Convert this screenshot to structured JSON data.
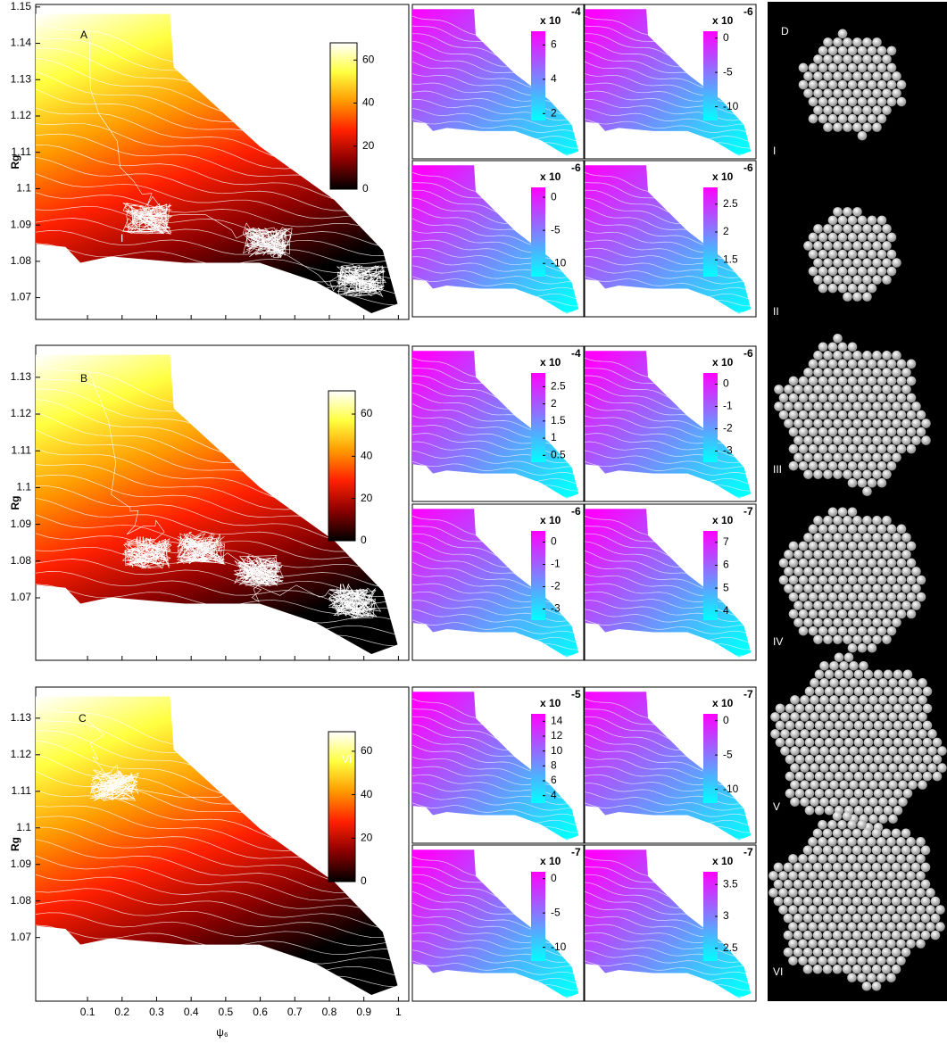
{
  "chart_data": [
    {
      "type": "contour",
      "panel_label": "A",
      "ylabel": "Rg",
      "xlim": [
        -0.05,
        1.03
      ],
      "ylim": [
        1.064,
        1.1507
      ],
      "xticks": [
        0.1,
        0.2,
        0.3,
        0.4,
        0.5,
        0.6,
        0.7,
        0.8,
        0.9,
        1
      ],
      "xtick_labels": false,
      "yticks": [
        1.07,
        1.08,
        1.09,
        1.1,
        1.11,
        1.12,
        1.13,
        1.14,
        1.15
      ],
      "colormap": [
        "#000000",
        "#8b0000",
        "#ff2000",
        "#ff9900",
        "#ffff40",
        "#ffffff"
      ],
      "colorbar": {
        "lim": [
          0,
          68
        ],
        "ticks": [
          0,
          20,
          40,
          60
        ]
      },
      "annotations": [
        "I",
        "II"
      ]
    },
    {
      "type": "contour",
      "panel_label": "B",
      "ylabel": "Rg",
      "xlim": [
        -0.05,
        1.03
      ],
      "ylim": [
        1.053,
        1.1387
      ],
      "xticks": [
        0.1,
        0.2,
        0.3,
        0.4,
        0.5,
        0.6,
        0.7,
        0.8,
        0.9,
        1
      ],
      "xtick_labels": false,
      "yticks": [
        1.07,
        1.08,
        1.09,
        1.1,
        1.11,
        1.12,
        1.13
      ],
      "colormap": [
        "#000000",
        "#8b0000",
        "#ff2000",
        "#ff9900",
        "#ffff40",
        "#ffffff"
      ],
      "colorbar": {
        "lim": [
          0,
          71
        ],
        "ticks": [
          0,
          20,
          40,
          60
        ]
      },
      "annotations": [
        "III",
        "IV"
      ]
    },
    {
      "type": "contour",
      "panel_label": "C",
      "ylabel": "Rg",
      "xlabel": "ψ₆",
      "xlim": [
        -0.05,
        1.03
      ],
      "ylim": [
        1.0526,
        1.1385
      ],
      "xticks": [
        0.1,
        0.2,
        0.3,
        0.4,
        0.5,
        0.6,
        0.7,
        0.8,
        0.9,
        1
      ],
      "xtick_labels": true,
      "yticks": [
        1.07,
        1.08,
        1.09,
        1.1,
        1.11,
        1.12,
        1.13
      ],
      "colormap": [
        "#000000",
        "#8b0000",
        "#ff2000",
        "#ff9900",
        "#ffff40",
        "#ffffff"
      ],
      "colorbar": {
        "lim": [
          0,
          69
        ],
        "ticks": [
          0,
          20,
          40,
          60
        ]
      },
      "annotations": [
        "V",
        "VI"
      ]
    },
    {
      "type": "contour",
      "colormap": [
        "#00ffff",
        "#ff00ff"
      ],
      "colorbar": {
        "multiplier": "x 10",
        "exponent": "-4",
        "lim": [
          1.6,
          6.8
        ],
        "ticks": [
          2,
          4,
          6
        ]
      }
    },
    {
      "type": "contour",
      "colormap": [
        "#00ffff",
        "#ff00ff"
      ],
      "colorbar": {
        "multiplier": "x 10",
        "exponent": "-6",
        "lim": [
          -12,
          1
        ],
        "ticks": [
          -10,
          -5,
          0
        ]
      }
    },
    {
      "type": "contour",
      "colormap": [
        "#00ffff",
        "#ff00ff"
      ],
      "colorbar": {
        "multiplier": "x 10",
        "exponent": "-6",
        "lim": [
          -12,
          1.5
        ],
        "ticks": [
          -10,
          -5,
          0
        ]
      }
    },
    {
      "type": "contour",
      "colormap": [
        "#00ffff",
        "#ff00ff"
      ],
      "colorbar": {
        "multiplier": "x 10",
        "exponent": "-6",
        "lim": [
          1.2,
          2.8
        ],
        "ticks": [
          1.5,
          2,
          2.5
        ]
      }
    },
    {
      "type": "contour",
      "colormap": [
        "#00ffff",
        "#ff00ff"
      ],
      "colorbar": {
        "multiplier": "x 10",
        "exponent": "-4",
        "lim": [
          0.3,
          2.9
        ],
        "ticks": [
          0.5,
          1,
          1.5,
          2,
          2.5
        ]
      }
    },
    {
      "type": "contour",
      "colormap": [
        "#00ffff",
        "#ff00ff"
      ],
      "colorbar": {
        "multiplier": "x 10",
        "exponent": "-6",
        "lim": [
          -3.5,
          0.5
        ],
        "ticks": [
          -3,
          -2,
          -1,
          0
        ]
      }
    },
    {
      "type": "contour",
      "colormap": [
        "#00ffff",
        "#ff00ff"
      ],
      "colorbar": {
        "multiplier": "x 10",
        "exponent": "-6",
        "lim": [
          -3.5,
          0.5
        ],
        "ticks": [
          -3,
          -2,
          -1,
          0
        ]
      }
    },
    {
      "type": "contour",
      "colormap": [
        "#00ffff",
        "#ff00ff"
      ],
      "colorbar": {
        "multiplier": "x 10",
        "exponent": "-7",
        "lim": [
          3.6,
          7.5
        ],
        "ticks": [
          4,
          5,
          6,
          7
        ]
      }
    },
    {
      "type": "contour",
      "colormap": [
        "#00ffff",
        "#ff00ff"
      ],
      "colorbar": {
        "multiplier": "x 10",
        "exponent": "-5",
        "lim": [
          3,
          15
        ],
        "ticks": [
          4,
          6,
          8,
          10,
          12,
          14
        ]
      }
    },
    {
      "type": "contour",
      "colormap": [
        "#00ffff",
        "#ff00ff"
      ],
      "colorbar": {
        "multiplier": "x 10",
        "exponent": "-7",
        "lim": [
          -12,
          1
        ],
        "ticks": [
          -10,
          -5,
          0
        ]
      }
    },
    {
      "type": "contour",
      "colormap": [
        "#00ffff",
        "#ff00ff"
      ],
      "colorbar": {
        "multiplier": "x 10",
        "exponent": "-7",
        "lim": [
          -12,
          1
        ],
        "ticks": [
          -10,
          -5,
          0
        ]
      }
    },
    {
      "type": "contour",
      "colormap": [
        "#00ffff",
        "#ff00ff"
      ],
      "colorbar": {
        "multiplier": "x 10",
        "exponent": "-7",
        "lim": [
          2.3,
          3.7
        ],
        "ticks": [
          2.5,
          3,
          3.5
        ]
      }
    },
    {
      "type": "image",
      "panel_label": "D",
      "annotations": [
        "I",
        "II",
        "III",
        "IV",
        "V",
        "VI"
      ]
    }
  ]
}
